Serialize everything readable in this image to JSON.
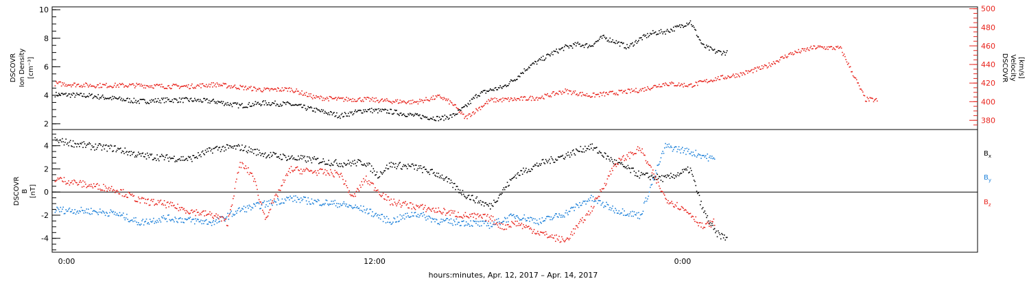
{
  "colors": {
    "black": "#000000",
    "red": "#e8231c",
    "blue": "#1a7fd9"
  },
  "top_panel": {
    "left_label": [
      "DSCOVR",
      "Ion Density",
      "[cm⁻³]"
    ],
    "right_label": [
      "DSCOVR",
      "Velocity",
      "[km/s]"
    ],
    "left_ticks": [
      "2",
      "4",
      "6",
      "8",
      "10"
    ],
    "right_ticks": [
      "380",
      "400",
      "420",
      "440",
      "460",
      "480",
      "500"
    ]
  },
  "bottom_panel": {
    "left_label": [
      "DSCOVR",
      "B",
      "[nT]"
    ],
    "left_ticks": [
      "-4",
      "-2",
      "0",
      "2",
      "4"
    ],
    "legend": [
      {
        "name": "B",
        "sub": "x",
        "color": "#000000"
      },
      {
        "name": "B",
        "sub": "y",
        "color": "#1a7fd9"
      },
      {
        "name": "B",
        "sub": "z",
        "color": "#e8231c"
      }
    ]
  },
  "x_axis": {
    "ticks": [
      "0:00",
      "12:00",
      "0:00"
    ],
    "label": "hours:minutes, Apr. 12, 2017 – Apr. 14, 2017"
  },
  "chart_data": [
    {
      "type": "scatter",
      "panel": "top",
      "x_unit": "hours since 0:00, Apr. 12, 2017",
      "xlim": [
        -0.5,
        36.5
      ],
      "ylim_left": [
        1.6,
        10.2
      ],
      "ylim_right": [
        370,
        502
      ],
      "series": [
        {
          "axis": "left",
          "color": "#000000",
          "points": [
            [
              -0.4,
              4.1
            ],
            [
              1,
              4.0
            ],
            [
              2,
              3.8
            ],
            [
              3,
              3.6
            ],
            [
              4,
              3.7
            ],
            [
              5,
              3.7
            ],
            [
              6,
              3.6
            ],
            [
              7,
              3.3
            ],
            [
              8,
              3.5
            ],
            [
              9,
              3.4
            ],
            [
              10,
              3.0
            ],
            [
              11,
              2.6
            ],
            [
              12,
              3.0
            ],
            [
              13,
              2.9
            ],
            [
              14,
              2.6
            ],
            [
              15,
              2.4
            ],
            [
              15.5,
              2.6
            ],
            [
              16,
              3.2
            ],
            [
              16.5,
              4.1
            ],
            [
              17,
              4.4
            ],
            [
              17.5,
              4.6
            ],
            [
              18,
              5.2
            ],
            [
              18.5,
              6.0
            ],
            [
              19,
              6.5
            ],
            [
              19.5,
              7.0
            ],
            [
              20,
              7.4
            ],
            [
              20.5,
              7.6
            ],
            [
              21,
              7.5
            ],
            [
              21.5,
              8.1
            ],
            [
              22,
              7.8
            ],
            [
              22.5,
              7.4
            ],
            [
              23,
              8.0
            ],
            [
              23.5,
              8.4
            ],
            [
              24,
              8.5
            ],
            [
              24.5,
              8.8
            ],
            [
              25,
              9.2
            ],
            [
              25.5,
              7.5
            ],
            [
              26,
              7.1
            ],
            [
              26.5,
              7.0
            ]
          ]
        },
        {
          "axis": "right",
          "color": "#e8231c",
          "points": [
            [
              -0.4,
              420
            ],
            [
              1,
              418
            ],
            [
              2,
              418
            ],
            [
              3,
              418
            ],
            [
              4,
              417
            ],
            [
              5,
              417
            ],
            [
              6,
              419
            ],
            [
              7,
              416
            ],
            [
              8,
              413
            ],
            [
              9,
              414
            ],
            [
              10,
              405
            ],
            [
              11,
              403
            ],
            [
              12,
              403
            ],
            [
              13,
              401
            ],
            [
              14,
              400
            ],
            [
              15,
              406
            ],
            [
              15.5,
              398
            ],
            [
              16,
              383
            ],
            [
              17,
              402
            ],
            [
              18,
              403
            ],
            [
              19,
              405
            ],
            [
              20,
              412
            ],
            [
              21,
              407
            ],
            [
              22,
              410
            ],
            [
              23,
              413
            ],
            [
              24,
              420
            ],
            [
              25,
              418
            ],
            [
              26,
              425
            ],
            [
              27,
              430
            ],
            [
              28,
              438
            ],
            [
              29,
              452
            ],
            [
              30,
              459
            ],
            [
              31,
              458
            ],
            [
              32,
              403
            ],
            [
              32.5,
              402
            ]
          ]
        }
      ]
    },
    {
      "type": "scatter",
      "panel": "bottom",
      "x_unit": "hours since 0:00, Apr. 12, 2017",
      "xlim": [
        -0.5,
        36.5
      ],
      "ylim": [
        -5.2,
        5.4
      ],
      "series": [
        {
          "name": "Bx",
          "color": "#000000",
          "points": [
            [
              -0.4,
              4.5
            ],
            [
              1,
              4.0
            ],
            [
              2,
              3.8
            ],
            [
              3,
              3.2
            ],
            [
              4,
              3.0
            ],
            [
              5,
              2.9
            ],
            [
              6,
              3.8
            ],
            [
              7,
              3.9
            ],
            [
              8,
              3.3
            ],
            [
              9,
              3.0
            ],
            [
              10,
              2.8
            ],
            [
              11,
              2.5
            ],
            [
              12,
              2.6
            ],
            [
              12.5,
              1.5
            ],
            [
              13,
              2.4
            ],
            [
              14,
              2.2
            ],
            [
              15,
              1.5
            ],
            [
              16,
              -0.2
            ],
            [
              17,
              -1.2
            ],
            [
              18,
              1.5
            ],
            [
              19,
              2.5
            ],
            [
              20,
              3.2
            ],
            [
              21,
              4.0
            ],
            [
              22,
              2.6
            ],
            [
              23,
              1.5
            ],
            [
              24,
              1.2
            ],
            [
              25,
              2.0
            ],
            [
              25.5,
              -1.5
            ],
            [
              26,
              -3.5
            ],
            [
              26.5,
              -4.0
            ]
          ]
        },
        {
          "name": "By",
          "color": "#1a7fd9",
          "points": [
            [
              -0.4,
              -1.5
            ],
            [
              1,
              -1.6
            ],
            [
              2,
              -1.8
            ],
            [
              3,
              -2.6
            ],
            [
              4,
              -2.2
            ],
            [
              5,
              -2.4
            ],
            [
              6,
              -2.6
            ],
            [
              7,
              -1.5
            ],
            [
              8,
              -1.0
            ],
            [
              9,
              -0.5
            ],
            [
              10,
              -0.8
            ],
            [
              11,
              -1.0
            ],
            [
              12,
              -1.5
            ],
            [
              13,
              -2.5
            ],
            [
              14,
              -1.8
            ],
            [
              15,
              -2.5
            ],
            [
              16,
              -2.6
            ],
            [
              17,
              -2.8
            ],
            [
              18,
              -2.0
            ],
            [
              19,
              -2.5
            ],
            [
              20,
              -1.8
            ],
            [
              21,
              -0.5
            ],
            [
              22,
              -1.5
            ],
            [
              23,
              -2.0
            ],
            [
              24,
              4.0
            ],
            [
              25,
              3.5
            ],
            [
              25.5,
              3.2
            ],
            [
              26,
              2.8
            ]
          ]
        },
        {
          "name": "Bz",
          "color": "#e8231c",
          "points": [
            [
              -0.4,
              1.2
            ],
            [
              1,
              0.6
            ],
            [
              2,
              0.3
            ],
            [
              3,
              -0.7
            ],
            [
              4,
              -1.0
            ],
            [
              5,
              -1.6
            ],
            [
              6,
              -2.0
            ],
            [
              6.5,
              -2.6
            ],
            [
              7,
              2.5
            ],
            [
              7.5,
              1.5
            ],
            [
              8,
              -2.2
            ],
            [
              9,
              2.0
            ],
            [
              10,
              1.8
            ],
            [
              11,
              1.6
            ],
            [
              11.5,
              -0.5
            ],
            [
              12,
              1.2
            ],
            [
              13,
              -0.8
            ],
            [
              14,
              -1.2
            ],
            [
              15,
              -1.6
            ],
            [
              16,
              -2.0
            ],
            [
              17,
              -2.2
            ],
            [
              17.5,
              -3.0
            ],
            [
              18,
              -2.6
            ],
            [
              19,
              -3.5
            ],
            [
              20,
              -4.2
            ],
            [
              21,
              -1.6
            ],
            [
              22,
              2.5
            ],
            [
              23,
              3.8
            ],
            [
              24,
              -0.5
            ],
            [
              25,
              -1.8
            ],
            [
              25.5,
              -3.0
            ],
            [
              26,
              -2.5
            ]
          ]
        }
      ]
    }
  ]
}
